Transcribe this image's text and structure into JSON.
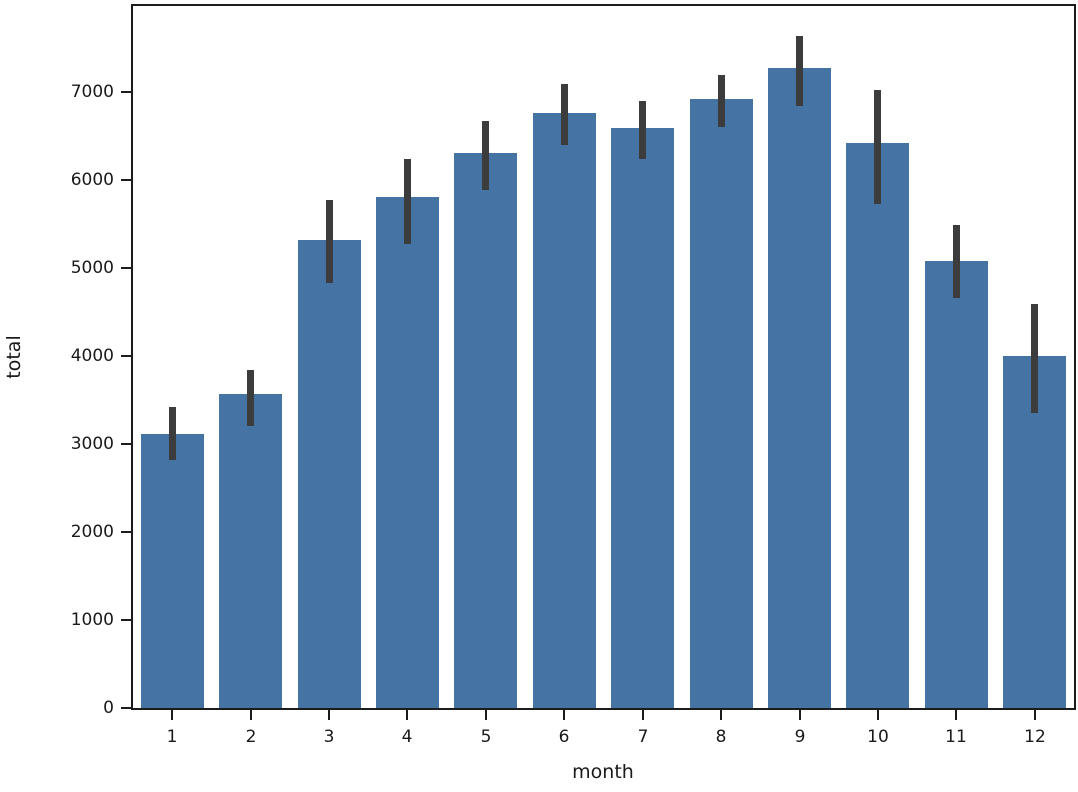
{
  "chart_data": {
    "type": "bar",
    "title": "",
    "xlabel": "month",
    "ylabel": "total",
    "categories": [
      "1",
      "2",
      "3",
      "4",
      "5",
      "6",
      "7",
      "8",
      "9",
      "10",
      "11",
      "12"
    ],
    "values": [
      3110,
      3570,
      5320,
      5810,
      6310,
      6760,
      6590,
      6920,
      7280,
      6420,
      5080,
      4000
    ],
    "error_low": [
      2820,
      3210,
      4830,
      5280,
      5890,
      6400,
      6240,
      6600,
      6840,
      5730,
      4660,
      3350
    ],
    "error_high": [
      3420,
      3850,
      5770,
      6250,
      6680,
      7090,
      6900,
      7190,
      7640,
      7030,
      5490,
      4590
    ],
    "y_ticks": [
      0,
      1000,
      2000,
      3000,
      4000,
      5000,
      6000,
      7000
    ],
    "ylim": [
      0,
      7980
    ],
    "grid": false,
    "legend": "none",
    "bar_color": "#4573a3",
    "error_bar_color": "#3c3c3c",
    "axis_color": "#1c1c1c",
    "text_color": "#1a1a1a"
  }
}
